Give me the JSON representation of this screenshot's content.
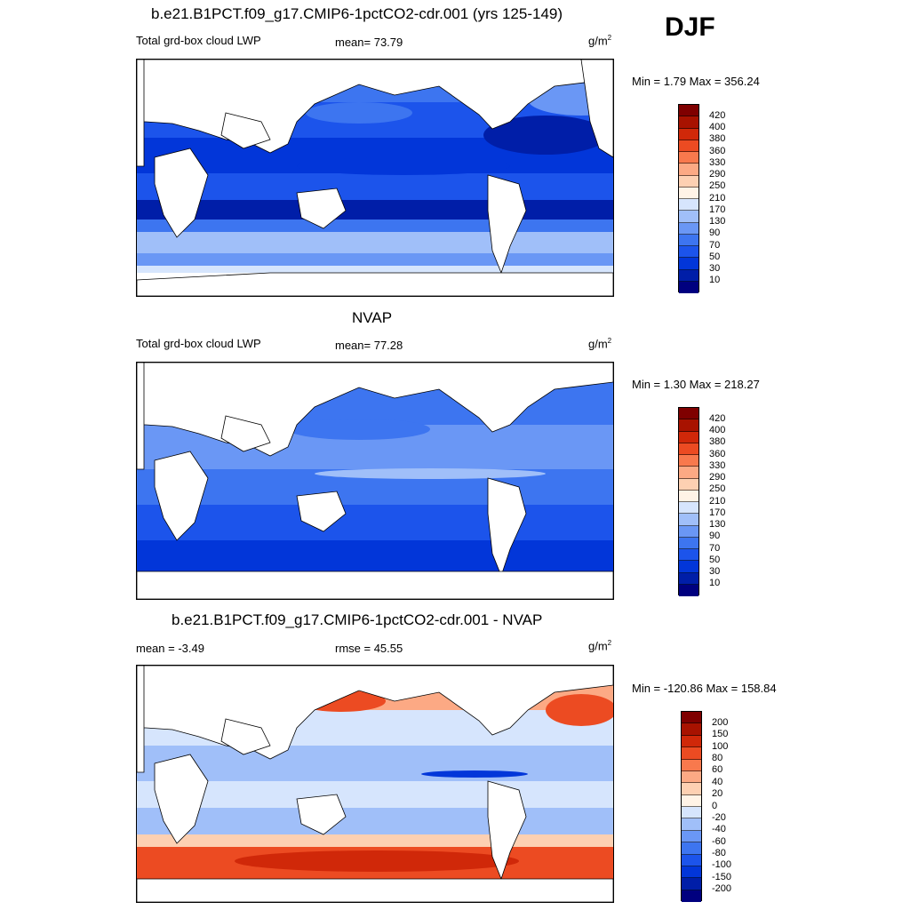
{
  "season": "DJF",
  "colors": {
    "cloud_scale": [
      "#00007f",
      "#001ea8",
      "#0236d9",
      "#1c54eb",
      "#3d75f0",
      "#6a97f5",
      "#a0bff9",
      "#d6e5fd",
      "#fff3e6",
      "#fdd0b2",
      "#fca984",
      "#f8794d",
      "#ec4b22",
      "#d02809",
      "#a81200",
      "#7f0000"
    ],
    "diff_scale": [
      "#00007f",
      "#001ea8",
      "#0236d9",
      "#1c54eb",
      "#3d75f0",
      "#6a97f5",
      "#a0bff9",
      "#d6e5fd",
      "#fff3e6",
      "#fdd0b2",
      "#fca984",
      "#f8794d",
      "#ec4b22",
      "#d02809",
      "#a81200",
      "#7f0000"
    ]
  },
  "panels": [
    {
      "title": "b.e21.B1PCT.f09_g17.CMIP6-1pctCO2-cdr.001 (yrs 125-149)",
      "left_label": "Total grd-box cloud LWP",
      "center_label": "mean=  73.79",
      "units": "g/m",
      "units_sup": "2",
      "minmax": "Min =   1.79 Max = 356.24",
      "legend_ticks": [
        "420",
        "400",
        "380",
        "360",
        "330",
        "290",
        "250",
        "210",
        "170",
        "130",
        "90",
        "70",
        "50",
        "30",
        "10"
      ]
    },
    {
      "title": "NVAP",
      "left_label": "Total grd-box cloud LWP",
      "center_label": "mean=  77.28",
      "units": "g/m",
      "units_sup": "2",
      "minmax": "Min =   1.30 Max = 218.27",
      "legend_ticks": [
        "420",
        "400",
        "380",
        "360",
        "330",
        "290",
        "250",
        "210",
        "170",
        "130",
        "90",
        "70",
        "50",
        "30",
        "10"
      ]
    },
    {
      "title": "b.e21.B1PCT.f09_g17.CMIP6-1pctCO2-cdr.001 - NVAP",
      "left_label": "mean =  -3.49",
      "center_label": "rmse =  45.55",
      "units": "g/m",
      "units_sup": "2",
      "minmax": "Min = -120.86 Max = 158.84",
      "legend_ticks": [
        "200",
        "150",
        "100",
        "80",
        "60",
        "40",
        "20",
        "0",
        "-20",
        "-40",
        "-60",
        "-80",
        "-100",
        "-150",
        "-200"
      ]
    }
  ]
}
